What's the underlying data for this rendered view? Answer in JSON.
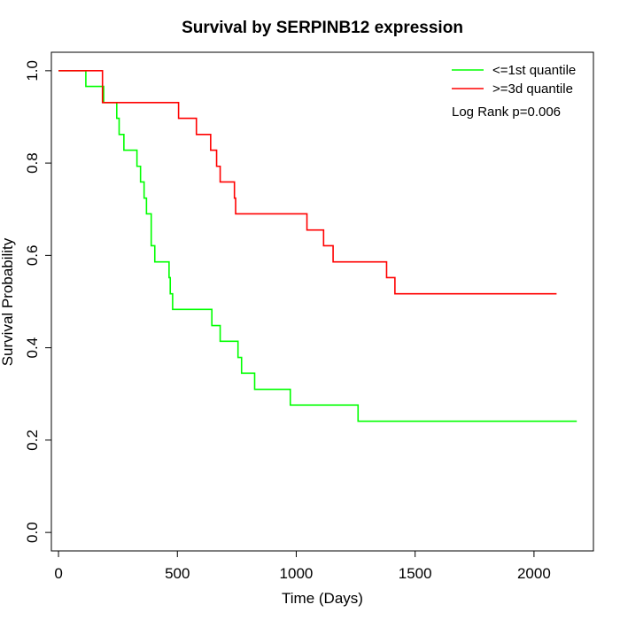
{
  "chart_data": {
    "type": "line",
    "title": "Survival by SERPINB12 expression",
    "xlabel": "Time (Days)",
    "ylabel": "Survival Probability",
    "xlim": [
      -30,
      2250
    ],
    "ylim": [
      -0.04,
      1.04
    ],
    "x_ticks": [
      0,
      500,
      1000,
      1500,
      2000
    ],
    "x_tick_labels": [
      "0",
      "500",
      "1000",
      "1500",
      "2000"
    ],
    "y_ticks": [
      0.0,
      0.2,
      0.4,
      0.6,
      0.8,
      1.0
    ],
    "y_tick_labels": [
      "0.0",
      "0.2",
      "0.4",
      "0.6",
      "0.8",
      "1.0"
    ],
    "grid": false,
    "legend_position": "top-right",
    "annotation": "Log Rank p=0.006",
    "series": [
      {
        "name": "<=1st quantile",
        "color": "#00ff00",
        "step": true,
        "points": [
          [
            0,
            1.0
          ],
          [
            115,
            0.966
          ],
          [
            190,
            0.931
          ],
          [
            245,
            0.897
          ],
          [
            255,
            0.862
          ],
          [
            275,
            0.828
          ],
          [
            330,
            0.793
          ],
          [
            345,
            0.759
          ],
          [
            360,
            0.724
          ],
          [
            370,
            0.69
          ],
          [
            390,
            0.621
          ],
          [
            405,
            0.586
          ],
          [
            465,
            0.552
          ],
          [
            470,
            0.517
          ],
          [
            480,
            0.483
          ],
          [
            645,
            0.448
          ],
          [
            680,
            0.414
          ],
          [
            755,
            0.379
          ],
          [
            770,
            0.345
          ],
          [
            825,
            0.31
          ],
          [
            975,
            0.276
          ],
          [
            1260,
            0.241
          ],
          [
            2180,
            0.241
          ]
        ]
      },
      {
        "name": ">=3d quantile",
        "color": "#ff0000",
        "step": true,
        "points": [
          [
            0,
            1.0
          ],
          [
            185,
            0.931
          ],
          [
            505,
            0.897
          ],
          [
            580,
            0.862
          ],
          [
            640,
            0.828
          ],
          [
            665,
            0.793
          ],
          [
            680,
            0.759
          ],
          [
            740,
            0.724
          ],
          [
            745,
            0.69
          ],
          [
            1045,
            0.655
          ],
          [
            1115,
            0.621
          ],
          [
            1155,
            0.586
          ],
          [
            1380,
            0.552
          ],
          [
            1415,
            0.517
          ],
          [
            2095,
            0.517
          ]
        ]
      }
    ]
  }
}
